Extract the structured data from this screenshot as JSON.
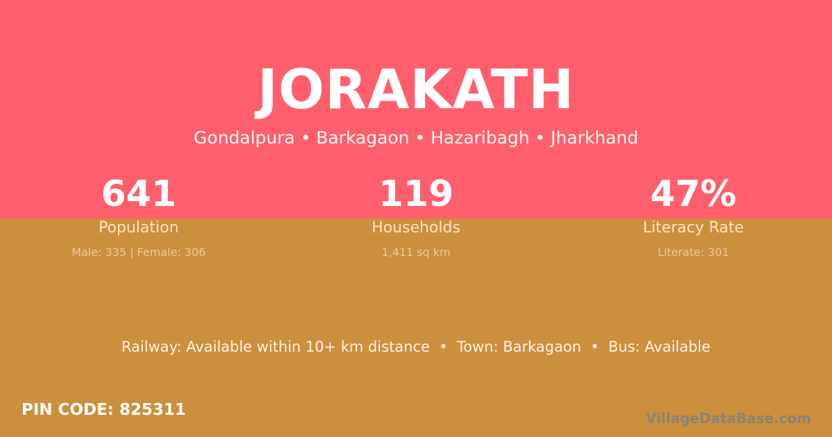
{
  "colors": {
    "top_band": "#ff5f6d",
    "bottom_band": "#cc8f3e"
  },
  "village": {
    "name": "JORAKATH",
    "location": "Gondalpura • Barkagaon • Hazaribagh • Jharkhand"
  },
  "stats": [
    {
      "value": "641",
      "label": "Population",
      "detail": "Male: 335 | Female: 306"
    },
    {
      "value": "119",
      "label": "Households",
      "detail": "1,411 sq km"
    },
    {
      "value": "47%",
      "label": "Literacy Rate",
      "detail": "Literate: 301"
    }
  ],
  "facts": "Railway: Available within 10+ km distance  •  Town: Barkagaon  •  Bus: Available",
  "pin_code": "PIN CODE: 825311",
  "brand": "VillageDataBase.com"
}
